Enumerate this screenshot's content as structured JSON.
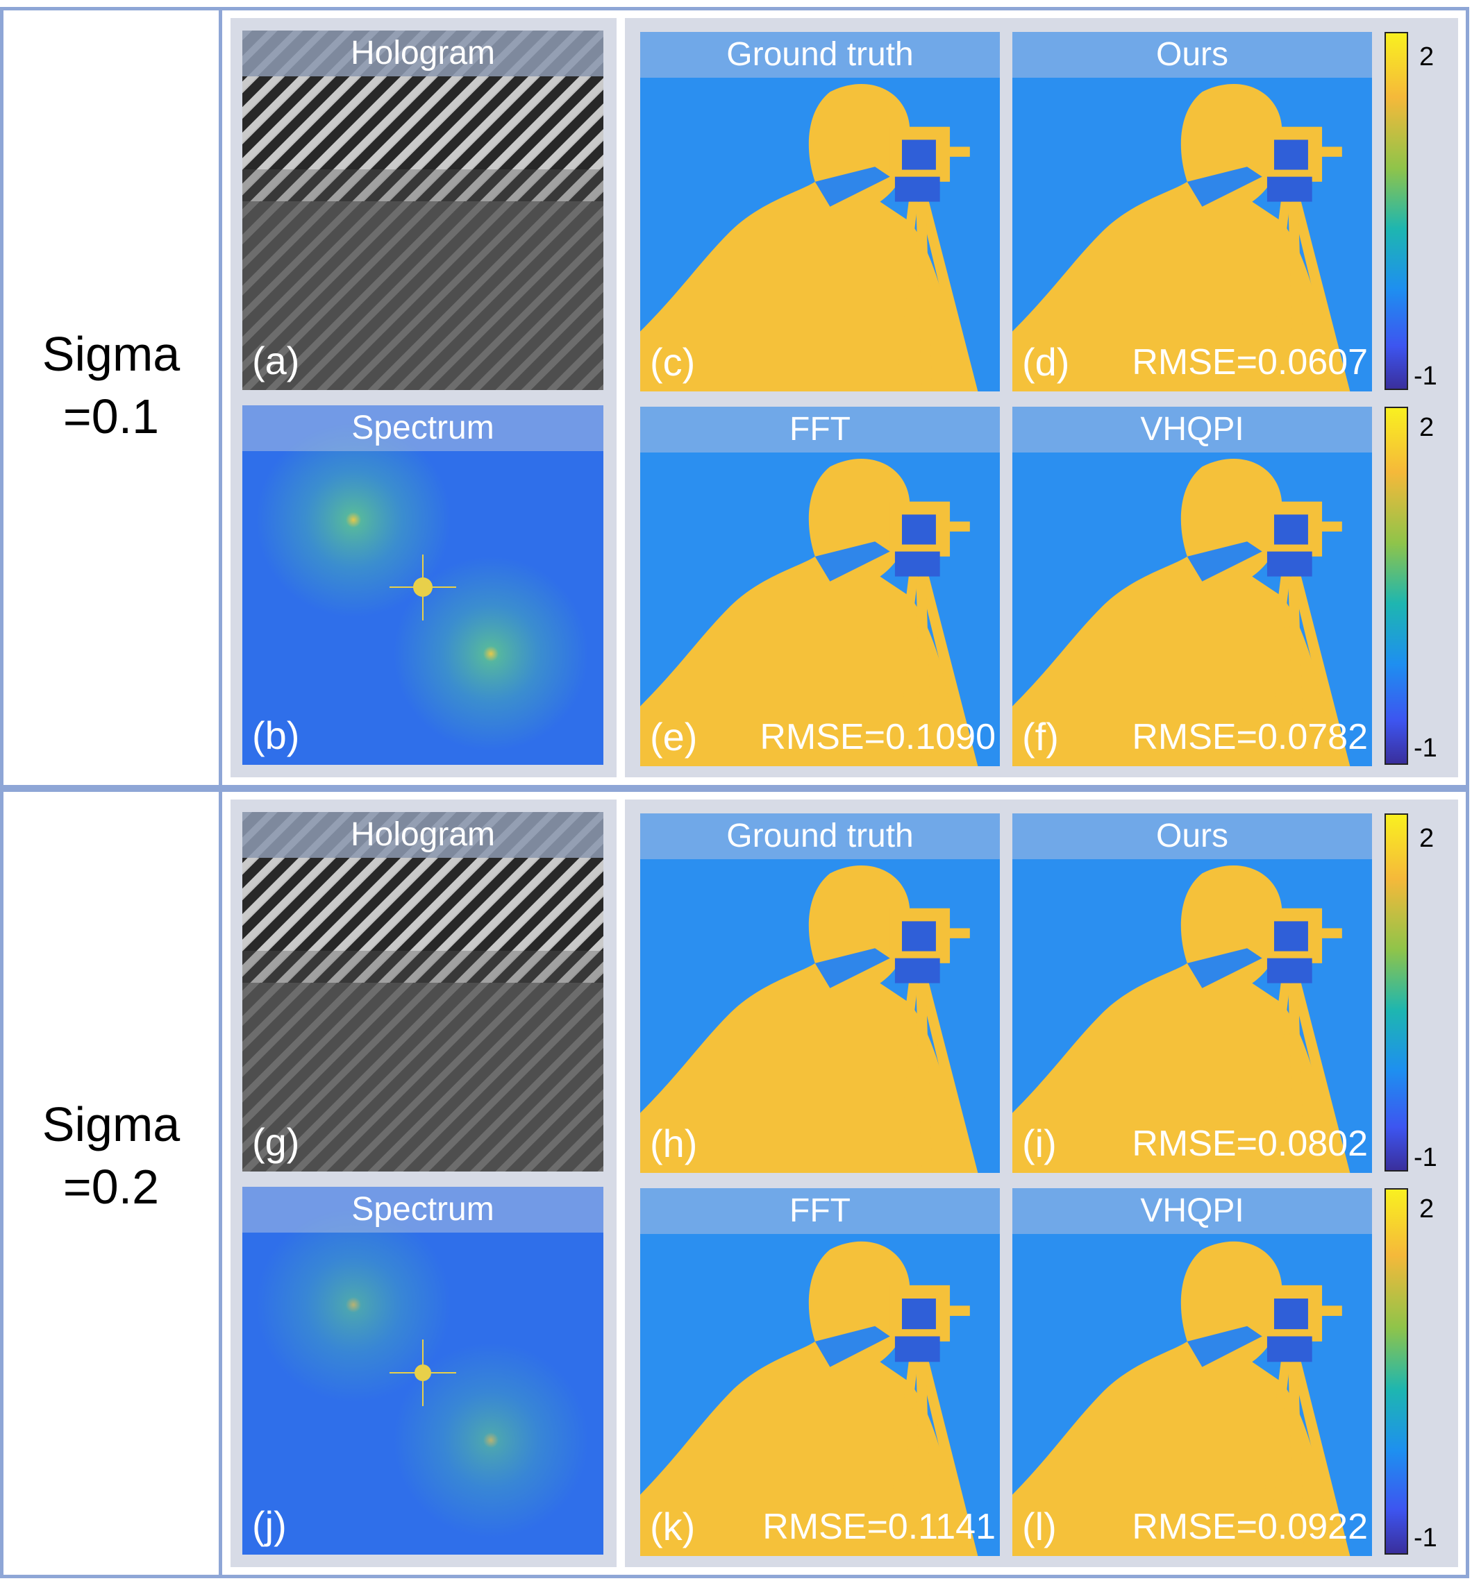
{
  "rows": [
    {
      "label_line1": "Sigma",
      "label_line2": "=0.1",
      "panels": [
        {
          "header": "Hologram",
          "tag": "(a)",
          "rmse": ""
        },
        {
          "header": "Spectrum",
          "tag": "(b)",
          "rmse": ""
        },
        {
          "header": "Ground truth",
          "tag": "(c)",
          "rmse": ""
        },
        {
          "header": "Ours",
          "tag": "(d)",
          "rmse": "RMSE=0.0607"
        },
        {
          "header": "FFT",
          "tag": "(e)",
          "rmse": "RMSE=0.1090"
        },
        {
          "header": "VHQPI",
          "tag": "(f)",
          "rmse": "RMSE=0.0782"
        }
      ],
      "colorbars": [
        {
          "max_label": "2",
          "min_label": "-1"
        },
        {
          "max_label": "2",
          "min_label": "-1"
        }
      ]
    },
    {
      "label_line1": "Sigma",
      "label_line2": "=0.2",
      "panels": [
        {
          "header": "Hologram",
          "tag": "(g)",
          "rmse": ""
        },
        {
          "header": "Spectrum",
          "tag": "(j)",
          "rmse": ""
        },
        {
          "header": "Ground truth",
          "tag": "(h)",
          "rmse": ""
        },
        {
          "header": "Ours",
          "tag": "(i)",
          "rmse": "RMSE=0.0802"
        },
        {
          "header": "FFT",
          "tag": "(k)",
          "rmse": "RMSE=0.1141"
        },
        {
          "header": "VHQPI",
          "tag": "(l)",
          "rmse": "RMSE=0.0922"
        }
      ],
      "colorbars": [
        {
          "max_label": "2",
          "min_label": "-1"
        },
        {
          "max_label": "2",
          "min_label": "-1"
        }
      ]
    }
  ],
  "colors": {
    "frame_border": "#8ea6d6",
    "panel_background": "#d7dbe6",
    "phase_background": "#2b8ff0",
    "phase_foreground": "#f5c13a",
    "spectrum_background": "#2f6fea"
  }
}
